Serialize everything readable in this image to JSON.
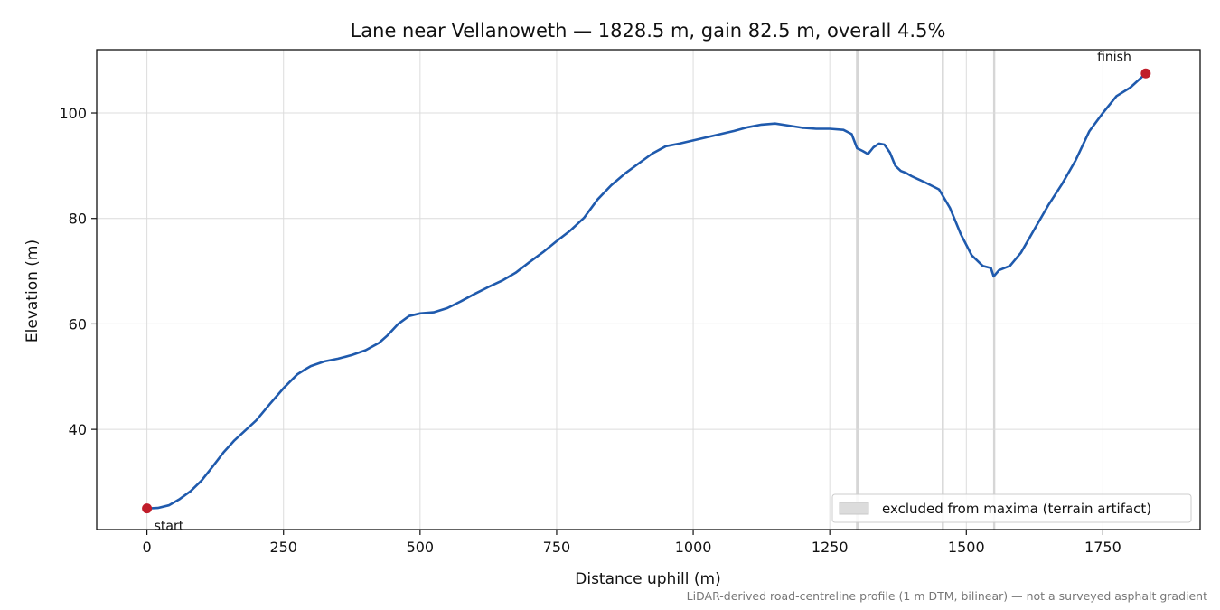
{
  "chart_data": {
    "type": "line",
    "title": "Lane near Vellanoweth — 1828.5 m, gain 82.5 m, overall 4.5%",
    "xlabel": "Distance uphill (m)",
    "ylabel": "Elevation (m)",
    "xlim": [
      -92,
      1928
    ],
    "ylim": [
      21,
      112
    ],
    "x_ticks": [
      0,
      250,
      500,
      750,
      1000,
      1250,
      1500,
      1750
    ],
    "y_ticks": [
      40,
      60,
      80,
      100
    ],
    "grid": true,
    "legend_position": "lower-right",
    "series": [
      {
        "name": "",
        "color": "#1f5aad",
        "x": [
          0,
          20,
          40,
          60,
          80,
          100,
          120,
          140,
          160,
          180,
          200,
          225,
          250,
          275,
          290,
          300,
          325,
          350,
          375,
          400,
          425,
          440,
          460,
          480,
          500,
          525,
          550,
          575,
          600,
          625,
          650,
          675,
          700,
          725,
          750,
          775,
          800,
          825,
          850,
          875,
          900,
          925,
          950,
          975,
          1000,
          1025,
          1050,
          1075,
          1100,
          1125,
          1150,
          1175,
          1200,
          1225,
          1250,
          1275,
          1290,
          1300,
          1310,
          1320,
          1330,
          1340,
          1350,
          1360,
          1370,
          1380,
          1390,
          1400,
          1425,
          1450,
          1470,
          1490,
          1510,
          1530,
          1545,
          1550,
          1560,
          1580,
          1600,
          1625,
          1650,
          1675,
          1700,
          1725,
          1750,
          1775,
          1800,
          1828.5
        ],
        "y": [
          25,
          25.1,
          25.6,
          26.8,
          28.3,
          30.3,
          32.9,
          35.6,
          37.9,
          39.8,
          41.7,
          44.8,
          47.8,
          50.4,
          51.4,
          52.0,
          52.9,
          53.4,
          54.1,
          55.0,
          56.4,
          57.8,
          60.0,
          61.5,
          62.0,
          62.2,
          63.0,
          64.3,
          65.7,
          67.0,
          68.2,
          69.7,
          71.7,
          73.6,
          75.7,
          77.7,
          80.1,
          83.6,
          86.3,
          88.5,
          90.4,
          92.3,
          93.7,
          94.2,
          94.8,
          95.4,
          96.0,
          96.6,
          97.3,
          97.8,
          98.0,
          97.6,
          97.2,
          97.0,
          97.0,
          96.8,
          96.0,
          93.3,
          92.8,
          92.2,
          93.5,
          94.2,
          94.0,
          92.5,
          90.0,
          89.0,
          88.6,
          88.0,
          86.8,
          85.5,
          82.0,
          77.0,
          73.0,
          71.0,
          70.6,
          69.0,
          70.2,
          71.0,
          73.5,
          78.0,
          82.5,
          86.5,
          91.0,
          96.5,
          100.0,
          103.2,
          104.8,
          107.5
        ]
      }
    ],
    "excluded_bands": [
      [
        1298,
        1303
      ],
      [
        1455,
        1459
      ],
      [
        1549,
        1553
      ]
    ],
    "excluded_color": "#cccccc",
    "markers": [
      {
        "x": 0,
        "y": 25,
        "label": "start",
        "color": "#c01d2a"
      },
      {
        "x": 1828.5,
        "y": 107.5,
        "label": "finish",
        "color": "#c01d2a"
      }
    ],
    "legend": [
      {
        "label": "excluded from maxima (terrain artifact)",
        "swatch": "#dcdcdc"
      }
    ],
    "footnote": "LiDAR-derived road-centreline profile (1 m DTM, bilinear) — not a surveyed asphalt gradient"
  }
}
